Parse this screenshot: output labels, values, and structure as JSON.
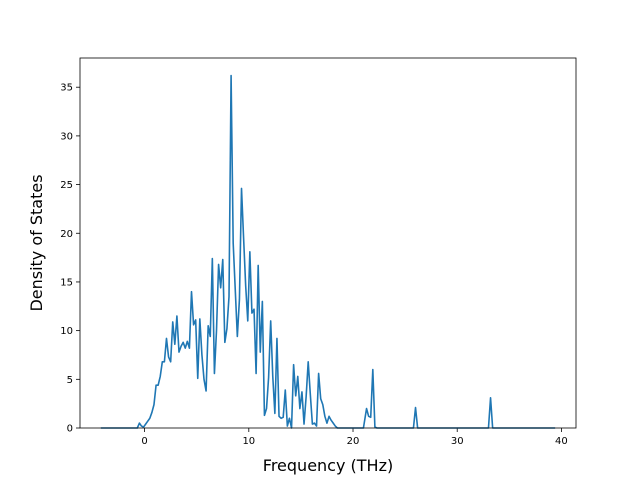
{
  "chart_data": {
    "type": "line",
    "title": "",
    "xlabel": "Frequency (THz)",
    "ylabel": "Density of States",
    "xlim": [
      -6.2,
      41.4
    ],
    "ylim": [
      0,
      38
    ],
    "xticks": [
      0,
      10,
      20,
      30,
      40
    ],
    "yticks": [
      0,
      5,
      10,
      15,
      20,
      25,
      30,
      35
    ],
    "grid": false,
    "legend": "none",
    "series": [
      {
        "color": "#1f77b4",
        "x": [
          -4.2,
          -1.5,
          -0.7,
          -0.5,
          -0.3,
          -0.1,
          0.1,
          0.3,
          0.5,
          0.7,
          0.9,
          1.1,
          1.3,
          1.5,
          1.7,
          1.9,
          2.1,
          2.3,
          2.5,
          2.7,
          2.9,
          3.1,
          3.3,
          3.5,
          3.7,
          3.9,
          4.1,
          4.3,
          4.5,
          4.7,
          4.9,
          5.1,
          5.3,
          5.5,
          5.7,
          5.9,
          6.1,
          6.3,
          6.5,
          6.7,
          6.9,
          7.1,
          7.3,
          7.5,
          7.7,
          7.9,
          8.1,
          8.3,
          8.5,
          8.7,
          8.9,
          9.1,
          9.3,
          9.5,
          9.7,
          9.9,
          10.1,
          10.3,
          10.5,
          10.7,
          10.9,
          11.1,
          11.3,
          11.5,
          11.7,
          11.9,
          12.1,
          12.3,
          12.5,
          12.7,
          12.9,
          13.1,
          13.3,
          13.5,
          13.7,
          13.9,
          14.1,
          14.3,
          14.5,
          14.7,
          14.9,
          15.1,
          15.3,
          15.5,
          15.7,
          15.9,
          16.1,
          16.3,
          16.5,
          16.7,
          16.9,
          17.1,
          17.3,
          17.5,
          17.7,
          17.9,
          18.1,
          18.3,
          18.5,
          18.7,
          18.9,
          19.1,
          19.3,
          19.5,
          19.7,
          20.0,
          20.5,
          21.0,
          21.3,
          21.5,
          21.7,
          21.9,
          22.1,
          22.3,
          22.5,
          25.8,
          26.0,
          26.2,
          33.0,
          33.2,
          33.4,
          39.4
        ],
        "y": [
          0,
          0,
          0,
          0.5,
          0.2,
          0.1,
          0.4,
          0.7,
          1.0,
          1.6,
          2.4,
          4.4,
          4.4,
          5.3,
          6.8,
          6.8,
          9.2,
          7.3,
          6.8,
          10.9,
          8.6,
          11.5,
          7.8,
          8.4,
          8.8,
          8.2,
          8.9,
          8.2,
          14.0,
          10.6,
          11.1,
          5.1,
          11.2,
          7.5,
          5.0,
          3.8,
          10.5,
          9.4,
          17.4,
          5.6,
          10.0,
          16.8,
          14.4,
          17.3,
          8.8,
          10.2,
          13.5,
          36.2,
          19.0,
          14.2,
          9.4,
          13.2,
          24.6,
          19.5,
          14.6,
          11.0,
          18.1,
          11.8,
          12.2,
          5.6,
          16.7,
          7.8,
          13.0,
          1.3,
          2.0,
          5.2,
          11.0,
          5.3,
          1.5,
          9.2,
          1.2,
          1.0,
          1.1,
          3.9,
          0.2,
          1.0,
          0,
          6.5,
          3.3,
          5.3,
          2.0,
          3.7,
          0.4,
          3.2,
          6.8,
          3.5,
          0.4,
          0.5,
          0.2,
          5.6,
          3.0,
          2.4,
          1.2,
          0.5,
          1.2,
          0.8,
          0.5,
          0.2,
          0,
          0,
          0,
          0,
          0,
          0,
          0,
          0,
          0,
          0,
          2.0,
          1.2,
          1.1,
          6.0,
          0.1,
          0,
          0,
          0,
          2.1,
          0,
          0,
          3.1,
          0,
          0
        ]
      }
    ]
  }
}
